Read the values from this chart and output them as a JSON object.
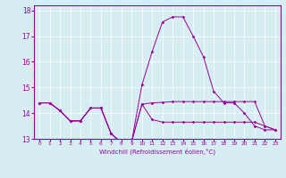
{
  "xlabel": "Windchill (Refroidissement éolien,°C)",
  "bg_color": "#d6eef2",
  "line_color": "#990099",
  "grid_color": "#ffffff",
  "xlim": [
    -0.5,
    23.5
  ],
  "ylim": [
    13.0,
    18.2
  ],
  "yticks": [
    13,
    14,
    15,
    16,
    17,
    18
  ],
  "xticks": [
    0,
    1,
    2,
    3,
    4,
    5,
    6,
    7,
    8,
    9,
    10,
    11,
    12,
    13,
    14,
    15,
    16,
    17,
    18,
    19,
    20,
    21,
    22,
    23
  ],
  "line1": [
    14.4,
    14.4,
    14.1,
    13.7,
    13.7,
    14.2,
    14.2,
    13.2,
    12.85,
    12.9,
    15.1,
    16.4,
    17.55,
    17.75,
    17.75,
    17.0,
    16.2,
    14.85,
    14.4,
    14.4,
    14.0,
    13.5,
    13.35,
    13.35
  ],
  "line2": [
    14.4,
    14.4,
    14.1,
    13.7,
    13.7,
    14.2,
    14.2,
    13.2,
    12.85,
    12.9,
    14.35,
    14.4,
    14.42,
    14.45,
    14.45,
    14.45,
    14.45,
    14.45,
    14.45,
    14.45,
    14.45,
    14.45,
    13.5,
    13.35
  ],
  "line3": [
    14.4,
    14.4,
    14.1,
    13.7,
    13.7,
    14.2,
    14.2,
    13.2,
    12.85,
    12.9,
    14.35,
    13.75,
    13.65,
    13.65,
    13.65,
    13.65,
    13.65,
    13.65,
    13.65,
    13.65,
    13.65,
    13.65,
    13.5,
    13.35
  ]
}
